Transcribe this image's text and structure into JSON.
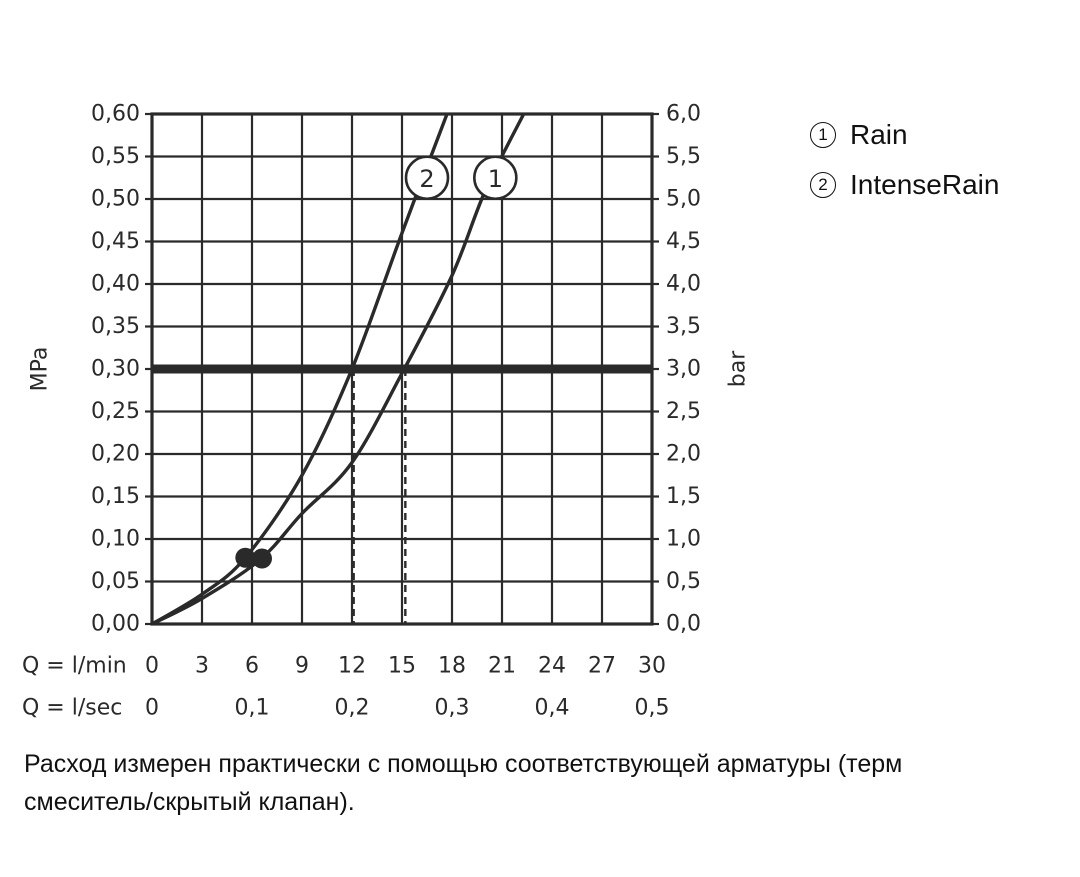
{
  "chart_data": {
    "type": "line",
    "x_label": "Q = l/min",
    "x_ticks": [
      "0",
      "3",
      "6",
      "9",
      "12",
      "15",
      "18",
      "21",
      "24",
      "27",
      "30"
    ],
    "x2_label": "Q = l/sec",
    "x2_ticks": [
      {
        "value": 0,
        "label": "0"
      },
      {
        "value": 6,
        "label": "0,1"
      },
      {
        "value": 12,
        "label": "0,2"
      },
      {
        "value": 18,
        "label": "0,3"
      },
      {
        "value": 24,
        "label": "0,4"
      },
      {
        "value": 30,
        "label": "0,5"
      }
    ],
    "y_label": "MPa",
    "y_ticks": [
      "0,00",
      "0,05",
      "0,10",
      "0,15",
      "0,20",
      "0,25",
      "0,30",
      "0,35",
      "0,40",
      "0,45",
      "0,50",
      "0,55",
      "0,60"
    ],
    "y2_label": "bar",
    "y2_ticks": [
      "0,0",
      "0,5",
      "1,0",
      "1,5",
      "2,0",
      "2,5",
      "3,0",
      "3,5",
      "4,0",
      "4,5",
      "5,0",
      "5,5",
      "6,0"
    ],
    "xlim": [
      0,
      30
    ],
    "ylim": [
      0,
      0.6
    ],
    "grid": true,
    "reference_line": {
      "y": 0.3
    },
    "series": [
      {
        "marker": "1",
        "points": [
          [
            0,
            0
          ],
          [
            3,
            0.03
          ],
          [
            6.5,
            0.076
          ],
          [
            9,
            0.13
          ],
          [
            12,
            0.19
          ],
          [
            15,
            0.295
          ],
          [
            18,
            0.41
          ],
          [
            20,
            0.51
          ],
          [
            22.3,
            0.6
          ]
        ],
        "operating_point": {
          "x": 15.2,
          "y": 0.3
        },
        "min_point": {
          "x": 6.6,
          "y": 0.077
        },
        "label_position": {
          "x": 20.6,
          "y": 0.525
        }
      },
      {
        "marker": "2",
        "points": [
          [
            0,
            0
          ],
          [
            3,
            0.035
          ],
          [
            5.6,
            0.078
          ],
          [
            9,
            0.175
          ],
          [
            12,
            0.3
          ],
          [
            15,
            0.46
          ],
          [
            17.7,
            0.6
          ]
        ],
        "operating_point": {
          "x": 12.1,
          "y": 0.3
        },
        "min_point": {
          "x": 5.6,
          "y": 0.078
        },
        "label_position": {
          "x": 16.5,
          "y": 0.525
        }
      }
    ]
  },
  "legend": [
    {
      "symbol": "1",
      "label": "Rain"
    },
    {
      "symbol": "2",
      "label": "IntenseRain"
    }
  ],
  "note": {
    "line1": "Расход измерен практически с помощью соответствующей арматуры (терм",
    "line2": "смеситель/скрытый клапан)."
  },
  "colors": {
    "ink": "#2a2a2a",
    "background": "#ffffff"
  }
}
